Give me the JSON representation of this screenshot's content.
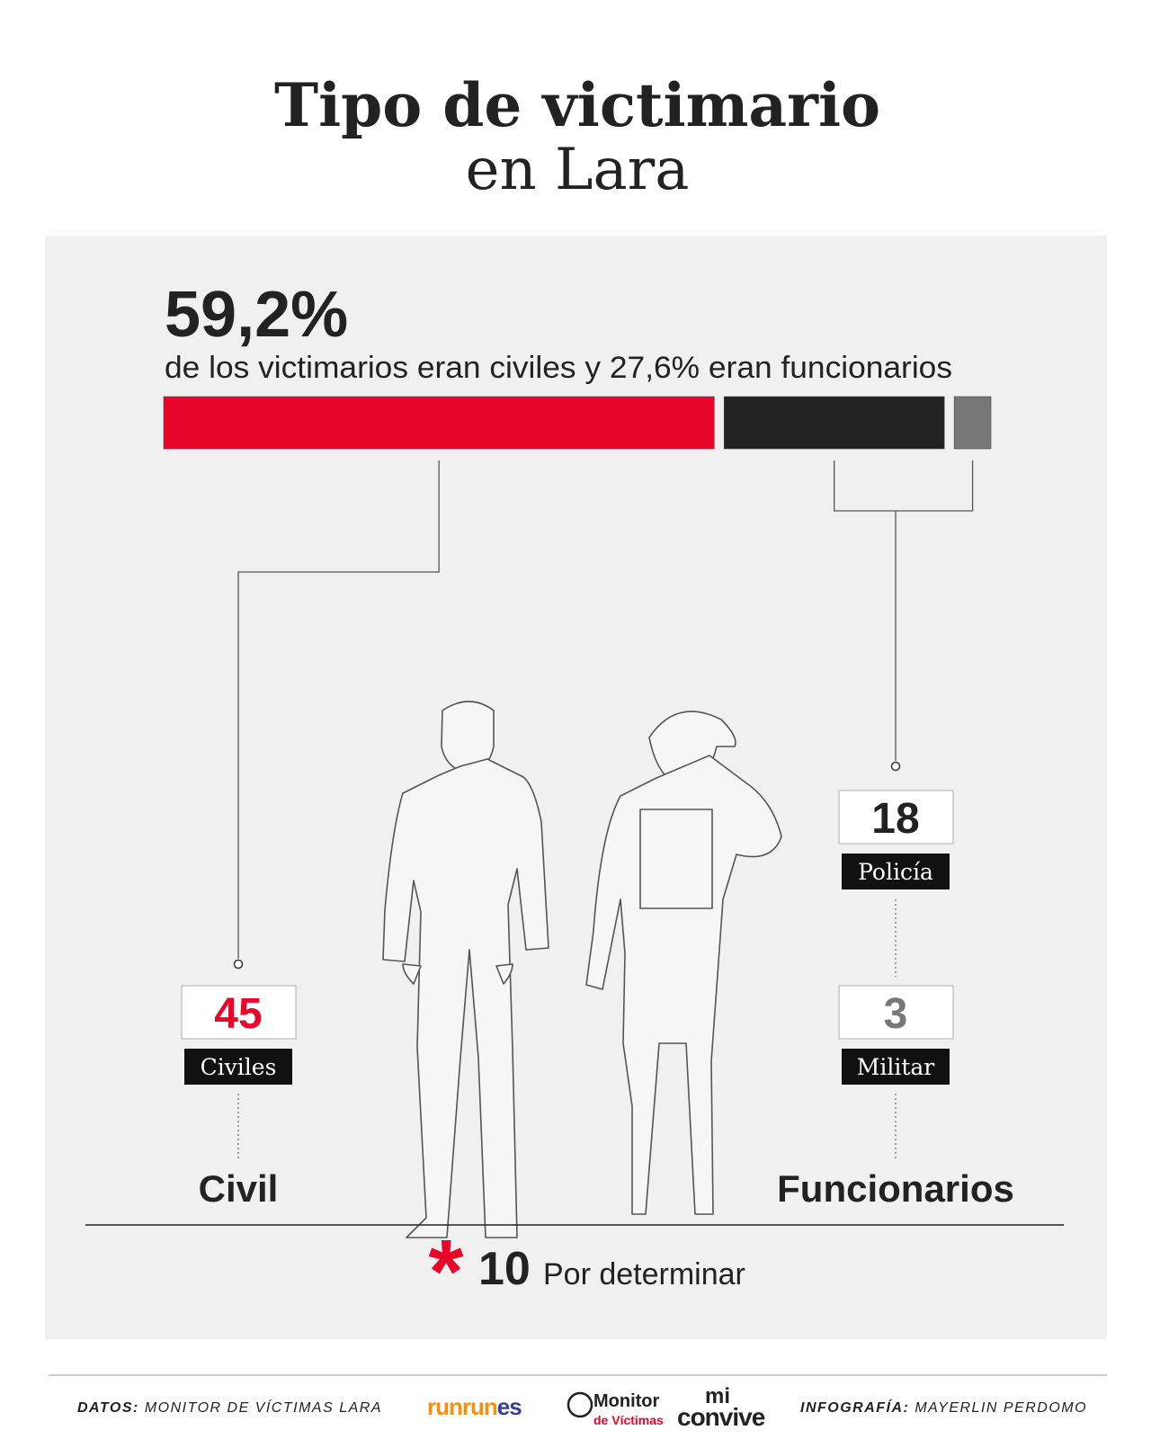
{
  "title": {
    "line1": "Tipo de victimario",
    "line2": "en Lara"
  },
  "headline": "59,2%",
  "subheadline": "de los victimarios eran civiles y 27,6% eran funcionarios",
  "chart_data": {
    "type": "stacked-bar",
    "categories": [
      "Civiles",
      "Policía",
      "Militar"
    ],
    "values": [
      45,
      18,
      3
    ],
    "colors": [
      "#e8062a",
      "#222222",
      "#777777"
    ]
  },
  "groups": [
    "Civil",
    "Funcionarios"
  ],
  "undetermined": {
    "value": 10,
    "label": "Por determinar"
  },
  "footer": {
    "data_label": "DATOS:",
    "data_source": "MONITOR DE VÍCTIMAS LARA",
    "logos": [
      "runrun",
      "es",
      "Monitor",
      "de Víctimas",
      "mi",
      "convive"
    ],
    "credit_label": "INFOGRAFÍA:",
    "credit_name": "MAYERLIN PERDOMO"
  }
}
